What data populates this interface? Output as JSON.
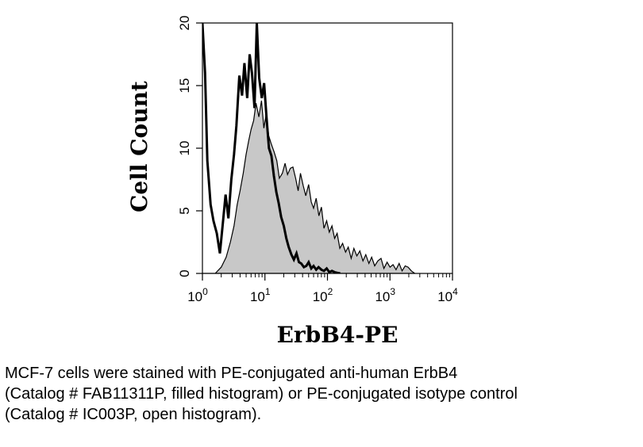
{
  "chart_data": {
    "type": "area",
    "xlabel": "ErbB4-PE",
    "ylabel": "Cell Count",
    "x_scale": "log",
    "xlim": [
      1,
      10000
    ],
    "ylim": [
      0,
      20
    ],
    "x_ticks": [
      {
        "base": "10",
        "exp": "0",
        "value": 1
      },
      {
        "base": "10",
        "exp": "1",
        "value": 10
      },
      {
        "base": "10",
        "exp": "2",
        "value": 100
      },
      {
        "base": "10",
        "exp": "3",
        "value": 1000
      },
      {
        "base": "10",
        "exp": "4",
        "value": 10000
      }
    ],
    "y_ticks": [
      "0",
      "5",
      "10",
      "15",
      "20"
    ],
    "series": [
      {
        "style": "filled",
        "fill": "#c8c8c8",
        "stroke": "#000000",
        "x": [
          1.0,
          1.3,
          1.6,
          2.0,
          2.4,
          2.8,
          3.2,
          3.6,
          4.0,
          4.5,
          5.0,
          5.5,
          6.0,
          6.6,
          7.2,
          8.0,
          8.8,
          9.6,
          10.5,
          11.5,
          12.5,
          14.0,
          15.5,
          17.0,
          19.0,
          21.0,
          23.0,
          25.5,
          28.0,
          31.0,
          34.0,
          37.0,
          41.0,
          45.0,
          50.0,
          55.0,
          60.0,
          66.0,
          73.0,
          80.0,
          88.0,
          97.0,
          107.0,
          118.0,
          130.0,
          143.0,
          158.0,
          175.0,
          195.0,
          215.0,
          240.0,
          265.0,
          295.0,
          330.0,
          370.0,
          410.0,
          460.0,
          510.0,
          570.0,
          640.0,
          720.0,
          800.0,
          900.0,
          1000.0,
          1120.0,
          1250.0,
          1400.0,
          1560.0,
          1750.0,
          1950.0,
          2200.0,
          2500.0
        ],
        "y": [
          0,
          0,
          0,
          0.5,
          1.3,
          2.5,
          3.8,
          5.5,
          6.6,
          8.0,
          9.5,
          10.6,
          11.5,
          12.2,
          13.6,
          12.5,
          13.8,
          11.6,
          12.8,
          11.0,
          10.4,
          9.7,
          9.0,
          7.6,
          8.0,
          8.8,
          7.9,
          8.4,
          8.5,
          7.6,
          6.6,
          8.0,
          7.0,
          6.2,
          7.1,
          5.7,
          5.2,
          6.0,
          4.6,
          5.3,
          3.6,
          4.2,
          3.3,
          3.8,
          2.8,
          3.2,
          2.0,
          2.4,
          1.7,
          2.1,
          1.2,
          2.0,
          1.4,
          1.8,
          1.0,
          1.5,
          0.8,
          1.3,
          0.6,
          1.0,
          1.2,
          0.4,
          0.9,
          0.5,
          0.7,
          0.3,
          0.8,
          0.2,
          0.6,
          0.5,
          0.2,
          0
        ]
      },
      {
        "style": "open",
        "fill": "none",
        "stroke": "#000000",
        "x": [
          1.0,
          1.1,
          1.2,
          1.35,
          1.5,
          1.7,
          1.9,
          2.1,
          2.35,
          2.6,
          2.9,
          3.2,
          3.5,
          3.9,
          4.3,
          4.7,
          5.2,
          5.7,
          6.2,
          6.8,
          7.4,
          8.1,
          8.9,
          9.7,
          10.6,
          11.6,
          12.7,
          13.9,
          15.2,
          16.6,
          18.2,
          20.0,
          22.0,
          24.0,
          26.5,
          29.0,
          32.0,
          35.0,
          38.0,
          42.0,
          46.0,
          50.0,
          55.0,
          60.0,
          66.0,
          72.0,
          80.0,
          88.0,
          97.0,
          107.0,
          118.0,
          130.0,
          143.0,
          160.0
        ],
        "y": [
          20,
          16,
          9,
          5.5,
          4.2,
          3.2,
          1.6,
          3.8,
          6.3,
          4.4,
          7.5,
          9.5,
          11.8,
          15.8,
          14.2,
          16.8,
          14.0,
          17.5,
          16.0,
          13.2,
          20.0,
          15.6,
          14.0,
          15.2,
          12.5,
          10.0,
          9.4,
          7.8,
          6.5,
          5.6,
          4.5,
          3.8,
          2.8,
          2.1,
          1.5,
          1.1,
          1.6,
          0.9,
          0.8,
          0.5,
          0.6,
          0.9,
          0.4,
          0.6,
          0.3,
          0.5,
          0.3,
          0.2,
          0.4,
          0.1,
          0.2,
          0.1,
          0.05,
          0
        ]
      }
    ]
  },
  "caption": [
    "MCF-7 cells were stained with PE-conjugated anti-human ErbB4",
    "(Catalog # FAB11311P, filled histogram) or PE-conjugated isotype control",
    "(Catalog # IC003P, open histogram)."
  ]
}
